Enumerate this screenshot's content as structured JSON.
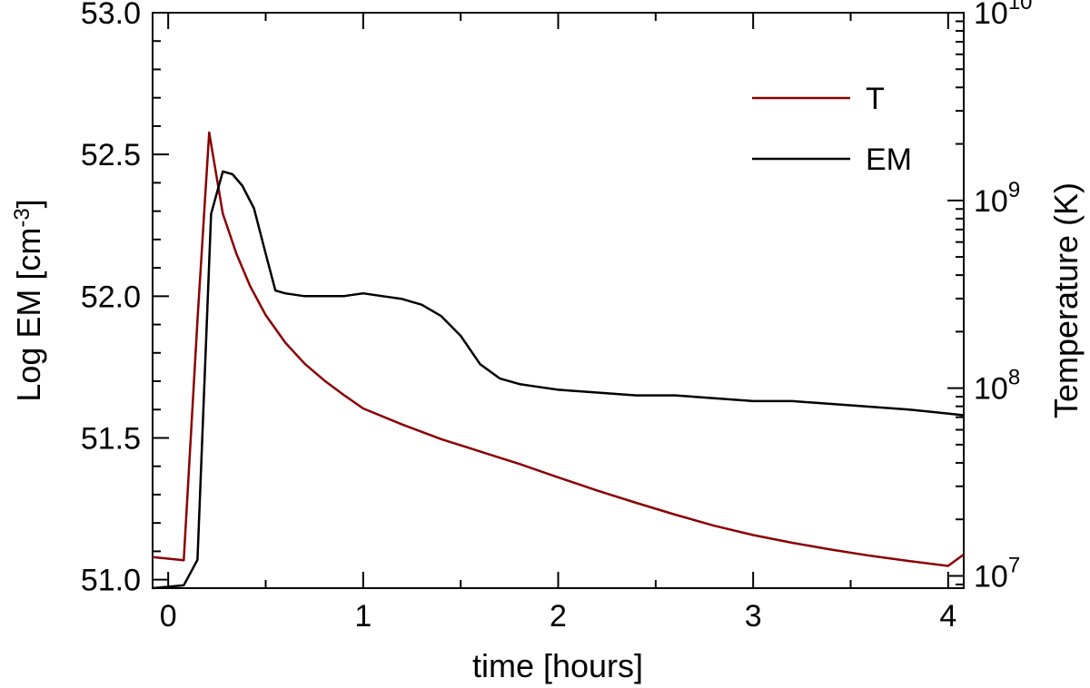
{
  "chart_data": {
    "type": "line",
    "title": "",
    "xlabel": "time [hours]",
    "ylabel_left": "Log EM [cm",
    "ylabel_left_sup": "-3",
    "ylabel_left_end": "]",
    "ylabel_right": "Temperature (K)",
    "xlim": [
      -0.08,
      4.08
    ],
    "ylim_left": [
      50.97,
      53.0
    ],
    "ylim_right": [
      8600000.0,
      10000000000.0
    ],
    "y_right_scale": "log",
    "x_ticks": [
      0,
      1,
      2,
      3,
      4
    ],
    "x_tick_labels": [
      "0",
      "1",
      "2",
      "3",
      "4"
    ],
    "y_left_ticks": [
      51.0,
      51.5,
      52.0,
      52.5,
      53.0
    ],
    "y_left_tick_labels": [
      "51.0",
      "51.5",
      "52.0",
      "52.5",
      "53.0"
    ],
    "y_right_ticks": [
      10000000.0,
      100000000.0,
      1000000000.0,
      10000000000.0
    ],
    "y_right_tick_labels": [
      {
        "base": "10",
        "exp": "7"
      },
      {
        "base": "10",
        "exp": "8"
      },
      {
        "base": "10",
        "exp": "9"
      },
      {
        "base": "10",
        "exp": "10"
      }
    ],
    "grid": false,
    "legend_position": "top-right",
    "series": [
      {
        "name": "T",
        "color": "#8b0000",
        "axis": "right",
        "points": [
          [
            -0.08,
            12600000.0
          ],
          [
            0.08,
            12100000.0
          ],
          [
            0.15,
            230000000.0
          ],
          [
            0.21,
            2300000000.0
          ],
          [
            0.28,
            850000000.0
          ],
          [
            0.35,
            520000000.0
          ],
          [
            0.42,
            350000000.0
          ],
          [
            0.5,
            245000000.0
          ],
          [
            0.6,
            175000000.0
          ],
          [
            0.7,
            135000000.0
          ],
          [
            0.8,
            110000000.0
          ],
          [
            0.9,
            92000000.0
          ],
          [
            1.0,
            78000000.0
          ],
          [
            1.2,
            64000000.0
          ],
          [
            1.4,
            53500000.0
          ],
          [
            1.6,
            46000000.0
          ],
          [
            1.8,
            39500000.0
          ],
          [
            2.0,
            33500000.0
          ],
          [
            2.2,
            28500000.0
          ],
          [
            2.4,
            24500000.0
          ],
          [
            2.6,
            21200000.0
          ],
          [
            2.8,
            18500000.0
          ],
          [
            3.0,
            16500000.0
          ],
          [
            3.2,
            15000000.0
          ],
          [
            3.4,
            13800000.0
          ],
          [
            3.6,
            12800000.0
          ],
          [
            3.8,
            12000000.0
          ],
          [
            4.0,
            11300000.0
          ],
          [
            4.08,
            13000000.0
          ]
        ]
      },
      {
        "name": "EM",
        "color": "#000000",
        "axis": "left",
        "points": [
          [
            -0.08,
            50.97
          ],
          [
            0.08,
            50.98
          ],
          [
            0.15,
            51.07
          ],
          [
            0.22,
            52.29
          ],
          [
            0.28,
            52.44
          ],
          [
            0.33,
            52.43
          ],
          [
            0.38,
            52.39
          ],
          [
            0.44,
            52.31
          ],
          [
            0.5,
            52.15
          ],
          [
            0.55,
            52.02
          ],
          [
            0.6,
            52.01
          ],
          [
            0.7,
            52.0
          ],
          [
            0.8,
            52.0
          ],
          [
            0.9,
            52.0
          ],
          [
            1.0,
            52.01
          ],
          [
            1.1,
            52.0
          ],
          [
            1.2,
            51.99
          ],
          [
            1.3,
            51.97
          ],
          [
            1.4,
            51.93
          ],
          [
            1.5,
            51.86
          ],
          [
            1.6,
            51.76
          ],
          [
            1.7,
            51.71
          ],
          [
            1.8,
            51.69
          ],
          [
            1.9,
            51.68
          ],
          [
            2.0,
            51.67
          ],
          [
            2.2,
            51.66
          ],
          [
            2.4,
            51.65
          ],
          [
            2.6,
            51.65
          ],
          [
            2.8,
            51.64
          ],
          [
            3.0,
            51.63
          ],
          [
            3.2,
            51.63
          ],
          [
            3.4,
            51.62
          ],
          [
            3.6,
            51.61
          ],
          [
            3.8,
            51.6
          ],
          [
            4.08,
            51.58
          ]
        ]
      }
    ]
  }
}
